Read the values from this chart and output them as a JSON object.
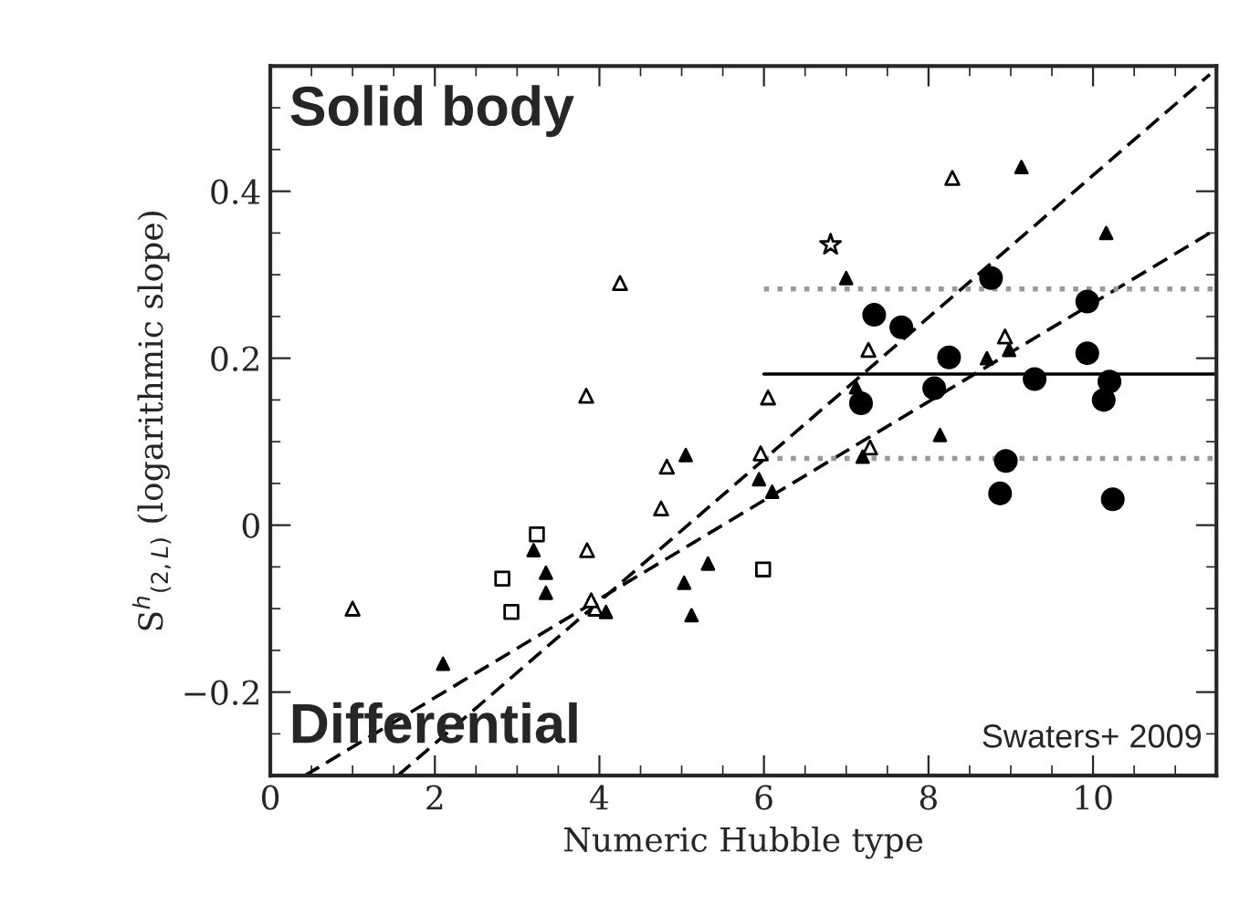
{
  "chart_data": {
    "type": "scatter",
    "xlabel": "Numeric Hubble type",
    "ylabel": "S$^{h}$$_{(2,L)}$ (logarithmic slope)",
    "annotations": [
      "Solid body",
      "Differential",
      "Swaters+ 2009"
    ],
    "xlim": [
      0,
      11.5
    ],
    "ylim": [
      -0.3,
      0.55
    ],
    "xticks": [
      0,
      2,
      4,
      6,
      8,
      10
    ],
    "yticks": [
      {
        "value": -0.2,
        "label": "−0.2"
      },
      0,
      0.2,
      0.4
    ],
    "grid": false,
    "legend": false,
    "series": [
      {
        "marker": "triangle",
        "color": "#ffffff",
        "x": [
          1.0,
          3.84,
          4.25,
          3.85,
          3.95,
          3.9,
          4.82,
          4.75,
          5.96,
          6.05,
          7.27,
          8.29,
          8.93,
          7.29
        ],
        "values": [
          -0.1,
          0.155,
          0.29,
          -0.03,
          -0.1,
          -0.09,
          0.07,
          0.02,
          0.086,
          0.153,
          0.21,
          0.416,
          0.226,
          0.093
        ]
      },
      {
        "marker": "square",
        "color": "#ffffff",
        "x": [
          3.24,
          2.82,
          2.93,
          5.99
        ],
        "values": [
          -0.011,
          -0.064,
          -0.104,
          -0.053
        ]
      },
      {
        "marker": "star",
        "color": "#ffffff",
        "x": [
          6.81
        ],
        "values": [
          0.336
        ]
      },
      {
        "marker": "circle",
        "color": "#000000",
        "x": [
          8.76,
          7.34,
          7.67,
          9.93,
          8.25,
          9.93,
          9.29,
          10.2,
          8.07,
          7.18,
          10.13,
          8.94,
          8.87,
          10.24
        ],
        "values": [
          0.296,
          0.252,
          0.237,
          0.268,
          0.201,
          0.206,
          0.175,
          0.172,
          0.164,
          0.146,
          0.15,
          0.077,
          0.038,
          0.031
        ]
      },
      {
        "marker": "triangle",
        "color": "#000000",
        "x": [
          9.13,
          10.16,
          7.0,
          8.71,
          8.98,
          7.12,
          8.14,
          5.05,
          7.2,
          5.94,
          6.1,
          5.32,
          5.03,
          5.12,
          3.2,
          3.35,
          3.35,
          2.1,
          4.08
        ],
        "values": [
          0.429,
          0.35,
          0.296,
          0.2,
          0.21,
          0.165,
          0.108,
          0.084,
          0.082,
          0.055,
          0.04,
          -0.046,
          -0.069,
          -0.108,
          -0.03,
          -0.057,
          -0.081,
          -0.166,
          -0.104
        ]
      },
      {
        "type": "line",
        "line_style": "dashed",
        "color": "#000000",
        "x": [
          1.55,
          11.42
        ],
        "values": [
          -0.3,
          0.54
        ]
      },
      {
        "type": "line",
        "line_style": "dashed",
        "color": "#000000",
        "x": [
          0.42,
          11.42
        ],
        "values": [
          -0.3,
          0.35
        ]
      },
      {
        "type": "line",
        "line_style": "solid",
        "color": "#000000",
        "x": [
          6,
          11.5
        ],
        "values": [
          0.181,
          0.181
        ]
      },
      {
        "type": "line",
        "line_style": "dotted",
        "color": "#999999",
        "x": [
          6,
          11.5
        ],
        "values": [
          0.283,
          0.283
        ]
      },
      {
        "type": "line",
        "line_style": "dotted",
        "color": "#999999",
        "x": [
          6,
          11.5
        ],
        "values": [
          0.08,
          0.08
        ]
      }
    ]
  }
}
